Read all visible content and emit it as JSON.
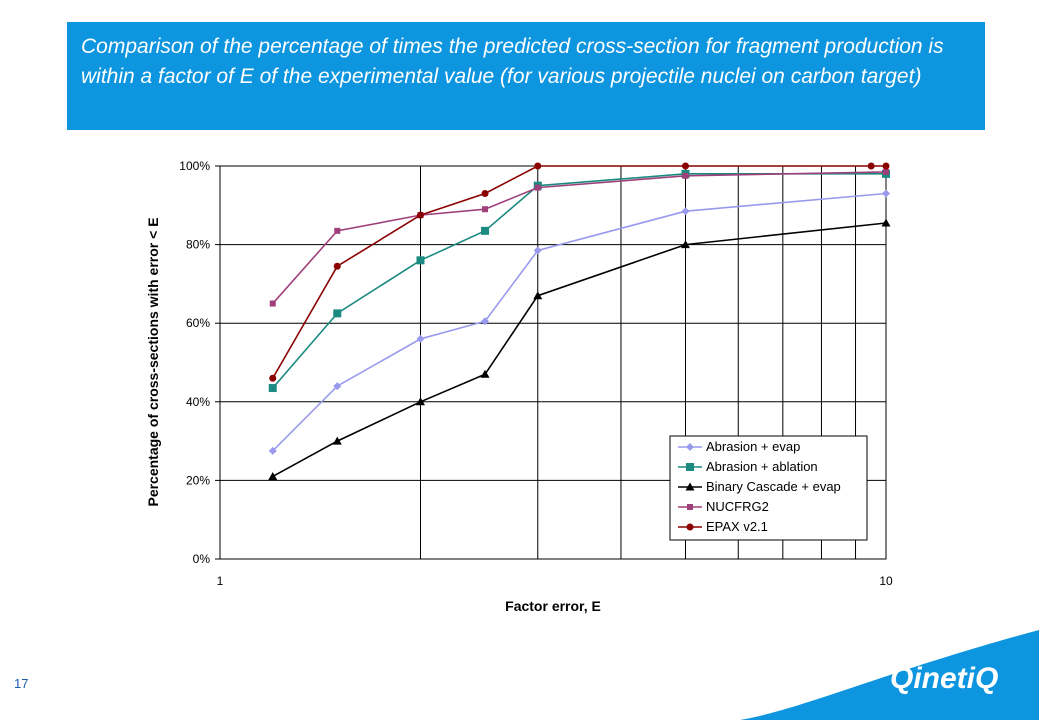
{
  "page": {
    "title": "Comparison of the percentage of times the predicted cross-section for fragment production is within a factor of E of the experimental value (for various projectile nuclei on carbon target)",
    "page_number": "17",
    "logo_text": "QinetiQ",
    "banner_color": "#0d95e0"
  },
  "chart_data": {
    "type": "line",
    "xscale": "log",
    "xlim": [
      1,
      10
    ],
    "ylim": [
      0,
      100
    ],
    "xlabel": "Factor error, E",
    "ylabel": "Percentage of cross-sections with error < E",
    "xticks": [
      "1",
      "10"
    ],
    "yticks": [
      "0%",
      "20%",
      "40%",
      "60%",
      "80%",
      "100%"
    ],
    "grid": true,
    "legend_position": "bottom-right",
    "series": [
      {
        "name": "Abrasion + evap",
        "color": "#9999ee",
        "marker": "diamond",
        "x": [
          1.2,
          1.5,
          2.0,
          2.5,
          3.0,
          5.0,
          10.0
        ],
        "y": [
          27.5,
          44,
          56,
          60.5,
          78.5,
          88.5,
          93
        ]
      },
      {
        "name": "Abrasion + ablation",
        "color": "#1b8a80",
        "marker": "square",
        "x": [
          1.2,
          1.5,
          2.0,
          2.5,
          3.0,
          5.0,
          10.0
        ],
        "y": [
          43.5,
          62.5,
          76,
          83.5,
          95,
          98,
          98
        ]
      },
      {
        "name": "Binary Cascade + evap",
        "color": "#000000",
        "marker": "triangle",
        "x": [
          1.2,
          1.5,
          2.0,
          2.5,
          3.0,
          5.0,
          10.0
        ],
        "y": [
          21,
          30,
          40,
          47,
          67,
          80,
          85.5
        ]
      },
      {
        "name": "NUCFRG2",
        "color": "#a0407a",
        "marker": "small-square",
        "x": [
          1.2,
          1.5,
          2.0,
          2.5,
          3.0,
          5.0,
          10.0
        ],
        "y": [
          65,
          83.5,
          87.5,
          89,
          94.5,
          97.5,
          98.5
        ]
      },
      {
        "name": "EPAX v2.1",
        "color": "#8b0000",
        "marker": "circle",
        "x": [
          1.2,
          1.5,
          2.0,
          2.5,
          3.0,
          5.0,
          9.5,
          10.0
        ],
        "y": [
          46,
          74.5,
          87.5,
          93,
          100,
          100,
          100,
          100
        ]
      }
    ]
  }
}
